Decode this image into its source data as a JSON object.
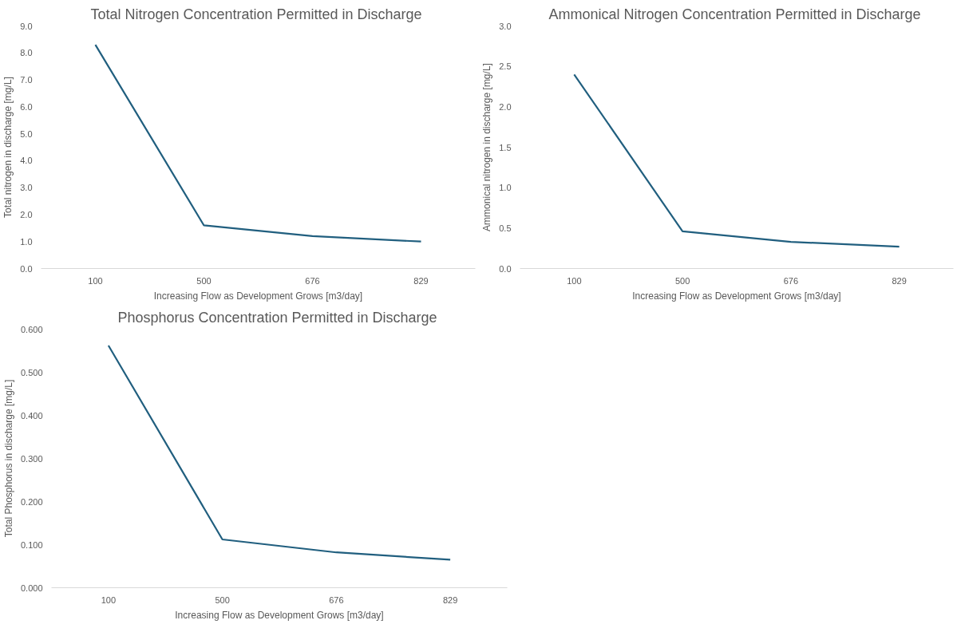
{
  "chart_data": [
    {
      "type": "line",
      "title": "Total Nitrogen Concentration  Permitted in Discharge",
      "xlabel": "Increasing Flow as Development Grows [m3/day]",
      "ylabel": "Total nitrogen in discharge [mg/L]",
      "categories": [
        "100",
        "500",
        "676",
        "829"
      ],
      "series": [
        {
          "color": "#215f7f",
          "values": [
            8.3,
            1.6,
            1.2,
            1.0
          ]
        }
      ],
      "ylim": [
        0,
        9
      ],
      "yticks": [
        {
          "value": 0,
          "label": "0.0"
        },
        {
          "value": 1,
          "label": "1.0"
        },
        {
          "value": 2,
          "label": "2.0"
        },
        {
          "value": 3,
          "label": "3.0"
        },
        {
          "value": 4,
          "label": "4.0"
        },
        {
          "value": 5,
          "label": "5.0"
        },
        {
          "value": 6,
          "label": "6.0"
        },
        {
          "value": 7,
          "label": "7.0"
        },
        {
          "value": 8,
          "label": "8.0"
        },
        {
          "value": 9,
          "label": "9.0"
        }
      ],
      "grid": false,
      "marker": "none",
      "line_style": "solid"
    },
    {
      "type": "line",
      "title": "Ammonical Nitrogen Concentration  Permitted in Discharge",
      "xlabel": "Increasing Flow as Development Grows [m3/day]",
      "ylabel": "Ammonical nitrogen in discharge [mg/L]",
      "categories": [
        "100",
        "500",
        "676",
        "829"
      ],
      "series": [
        {
          "color": "#215f7f",
          "values": [
            2.4,
            0.46,
            0.33,
            0.27
          ]
        }
      ],
      "ylim": [
        0,
        3
      ],
      "yticks": [
        {
          "value": 0,
          "label": "0.0"
        },
        {
          "value": 0.5,
          "label": "0.5"
        },
        {
          "value": 1,
          "label": "1.0"
        },
        {
          "value": 1.5,
          "label": "1.5"
        },
        {
          "value": 2,
          "label": "2.0"
        },
        {
          "value": 2.5,
          "label": "2.5"
        },
        {
          "value": 3,
          "label": "3.0"
        }
      ],
      "grid": false,
      "marker": "none",
      "line_style": "solid"
    },
    {
      "type": "line",
      "title": "Phosphorus Concentration  Permitted in Discharge",
      "xlabel": "Increasing Flow as Development Grows [m3/day]",
      "ylabel": "Total Phosphorus in discharge [mg/L]",
      "categories": [
        "100",
        "500",
        "676",
        "829"
      ],
      "series": [
        {
          "color": "#215f7f",
          "values": [
            0.562,
            0.112,
            0.082,
            0.065
          ]
        }
      ],
      "ylim": [
        0,
        0.6
      ],
      "yticks": [
        {
          "value": 0,
          "label": "0.000"
        },
        {
          "value": 0.1,
          "label": "0.100"
        },
        {
          "value": 0.2,
          "label": "0.200"
        },
        {
          "value": 0.3,
          "label": "0.300"
        },
        {
          "value": 0.4,
          "label": "0.400"
        },
        {
          "value": 0.5,
          "label": "0.500"
        },
        {
          "value": 0.6,
          "label": "0.600"
        }
      ],
      "grid": false,
      "marker": "none",
      "line_style": "solid"
    }
  ]
}
